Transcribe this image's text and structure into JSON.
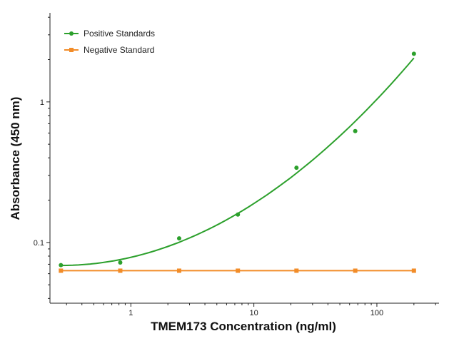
{
  "chart_data": {
    "type": "scatter",
    "xlabel": "TMEM173 Concentration (ng/ml)",
    "ylabel": "Absorbance (450 nm)",
    "x_scale": "log",
    "y_scale": "log",
    "xlim": [
      0.22,
      320
    ],
    "ylim": [
      0.037,
      4.3
    ],
    "x_ticks": [
      1,
      10,
      100
    ],
    "x_tick_labels": [
      "1",
      "10",
      "100"
    ],
    "y_ticks": [
      0.1,
      1
    ],
    "y_tick_labels": [
      "0.1",
      "1"
    ],
    "grid": false,
    "legend_position": "top-left",
    "series": [
      {
        "name": "Positive Standards",
        "color": "#2ca02c",
        "marker": "circle",
        "fit": "curve",
        "x": [
          0.27,
          0.82,
          2.47,
          7.41,
          22.2,
          66.7,
          200
        ],
        "y": [
          0.069,
          0.072,
          0.107,
          0.158,
          0.34,
          0.62,
          2.2
        ]
      },
      {
        "name": "Negative Standard",
        "color": "#f28c28",
        "marker": "square",
        "fit": "line",
        "x": [
          0.27,
          0.82,
          2.47,
          7.41,
          22.2,
          66.7,
          200
        ],
        "y": [
          0.063,
          0.063,
          0.063,
          0.063,
          0.063,
          0.063,
          0.063
        ]
      }
    ]
  }
}
